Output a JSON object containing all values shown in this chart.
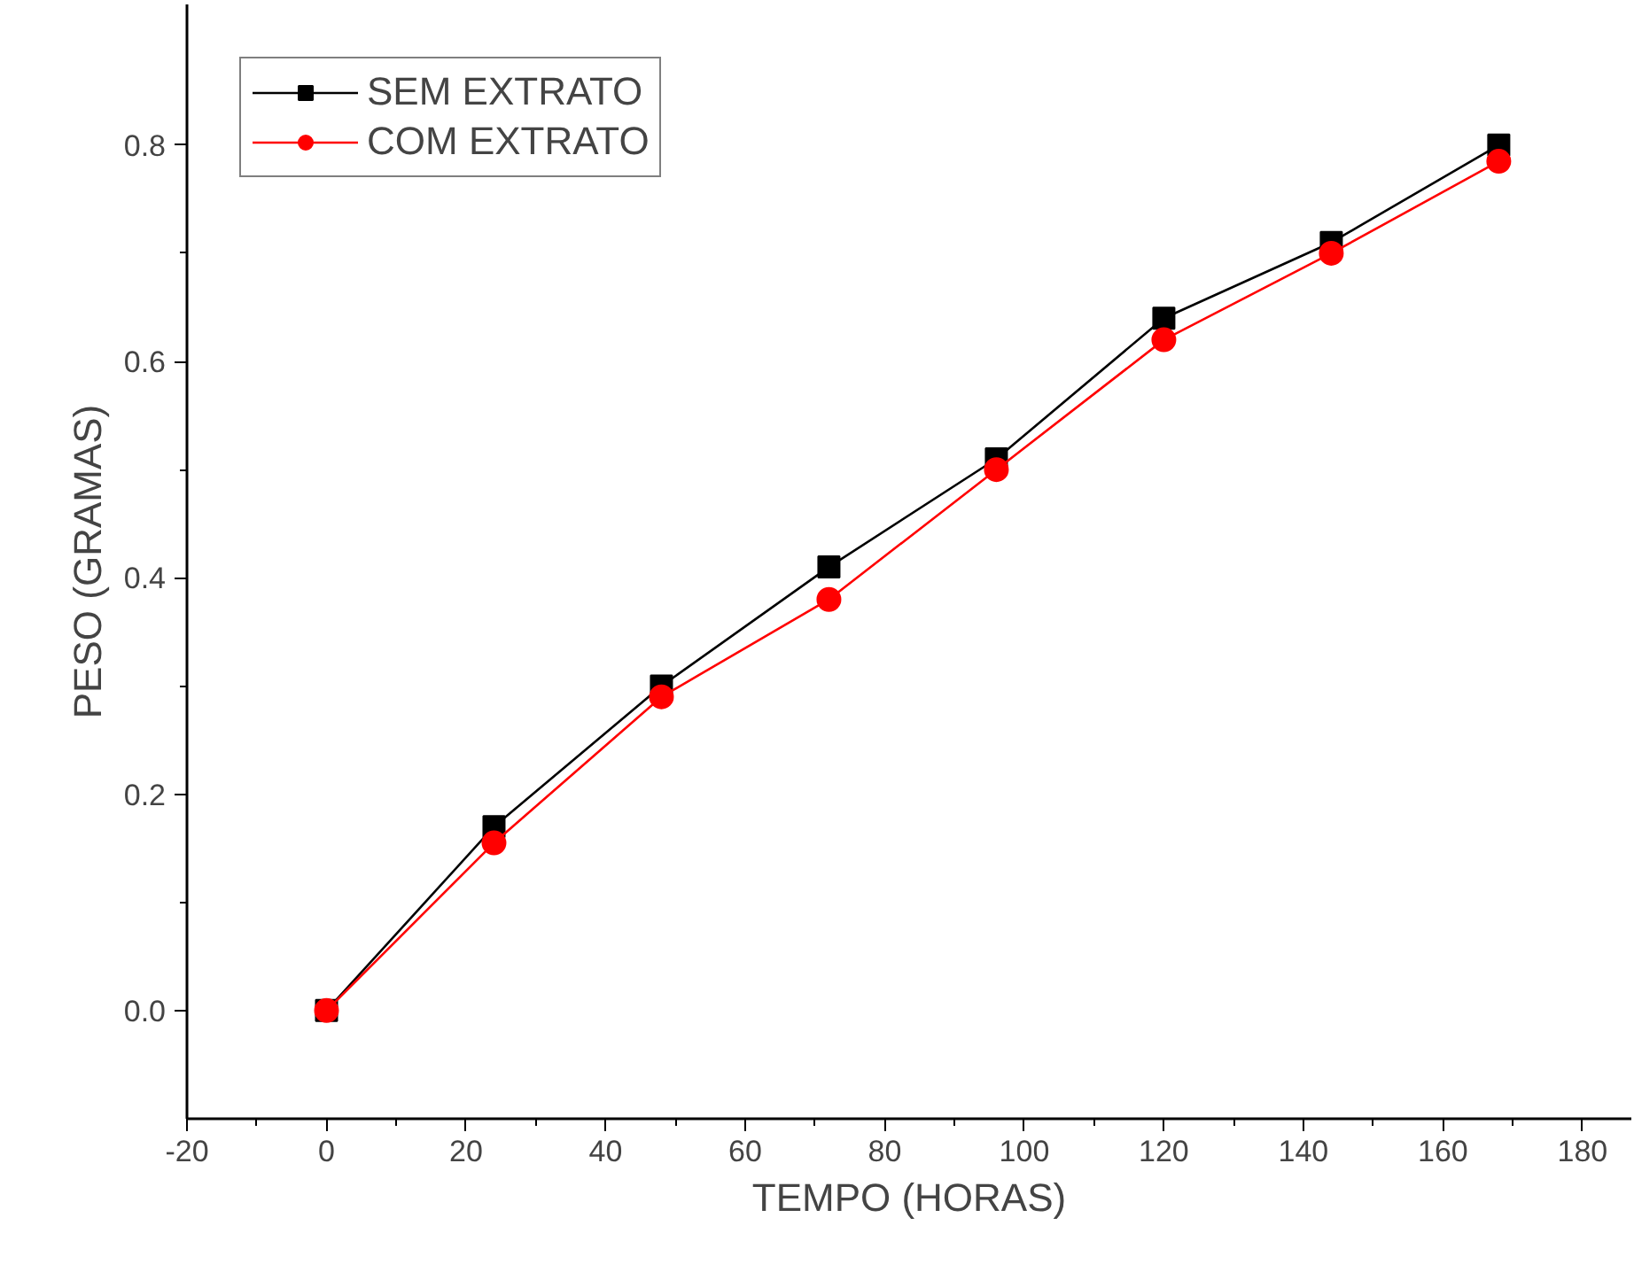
{
  "chart_data": {
    "type": "line",
    "xlabel": "TEMPO (HORAS)",
    "ylabel": "PESO (GRAMAS)",
    "x": [
      0,
      24,
      48,
      72,
      96,
      120,
      144,
      168
    ],
    "series": [
      {
        "name": "SEM EXTRATO",
        "color": "#000000",
        "marker": "square",
        "values": [
          0,
          0.17,
          0.3,
          0.41,
          0.51,
          0.64,
          0.71,
          0.8
        ]
      },
      {
        "name": "COM EXTRATO",
        "color": "#ff0000",
        "marker": "circle",
        "values": [
          0,
          0.155,
          0.29,
          0.38,
          0.5,
          0.62,
          0.7,
          0.785
        ]
      }
    ],
    "xlim": [
      -20,
      187
    ],
    "xticks": [
      -20,
      0,
      20,
      40,
      60,
      80,
      100,
      120,
      140,
      160,
      180
    ],
    "ylim": [
      -0.1,
      0.93
    ],
    "yticks": [
      {
        "value": 0,
        "label": "0.0"
      },
      0.2,
      0.4,
      0.6,
      0.8
    ],
    "grid": false,
    "legend": "top left",
    "line_style": "solid"
  }
}
